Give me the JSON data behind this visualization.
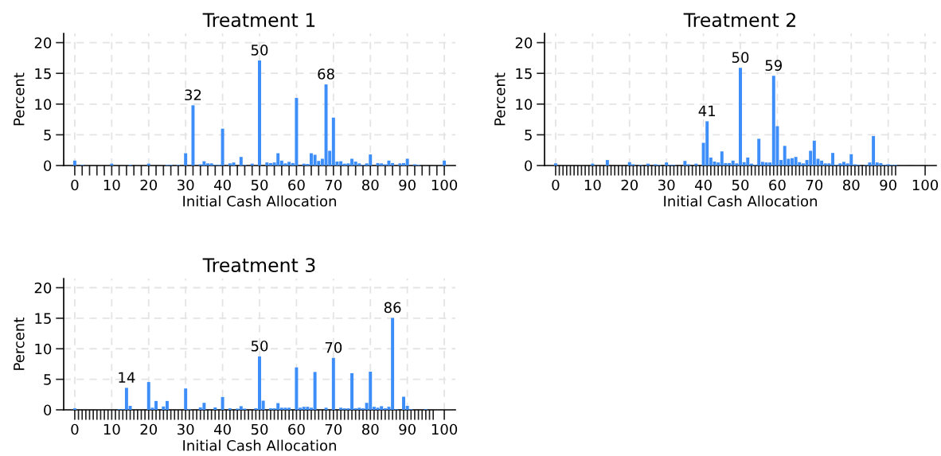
{
  "chart_data": [
    {
      "type": "histogram",
      "title": "Treatment 1",
      "xlabel": "Initial Cash Allocation",
      "ylabel": "Percent",
      "color": "#3d8ef8",
      "grid": true,
      "bins": [
        -0.5,
        0.5,
        1.5,
        2.5,
        3.5,
        4.5,
        5.5,
        6.5,
        7.5,
        8.5,
        9.5,
        10.5,
        11.5,
        12.5,
        13.5,
        14.5,
        15.5,
        16.5,
        17.5,
        18.5,
        19.5,
        20.5,
        21.5,
        22.5,
        23.5,
        24.5,
        25.5,
        26.5,
        27.5,
        28.5,
        29.5,
        30.5,
        31.5,
        32.5,
        33.5,
        34.5,
        35.5,
        36.5,
        37.5,
        38.5,
        39.5,
        40.5,
        41.5,
        42.5,
        43.5,
        44.5,
        45.5,
        46.5,
        47.5,
        48.5,
        49.5,
        50.5,
        51.5,
        52.5,
        53.5,
        54.5,
        55.5,
        56.5,
        57.5,
        58.5,
        59.5,
        60.5,
        61.5,
        62.5,
        63.5,
        64.5,
        65.5,
        66.5,
        67.5,
        68.5,
        69.5,
        70.5,
        71.5,
        72.5,
        73.5,
        74.5,
        75.5,
        76.5,
        77.5,
        78.5,
        79.5,
        80.5,
        81.5,
        82.5,
        83.5,
        84.5,
        85.5,
        86.5,
        87.5,
        88.5,
        89.5,
        90.5,
        91.5,
        92.5,
        93.5,
        94.5,
        95.5,
        96.5,
        97.5,
        98.5,
        99.5,
        100.5
      ],
      "values": [
        0.8,
        0,
        0.1,
        0,
        0,
        0,
        0,
        0,
        0,
        0,
        0.3,
        0,
        0,
        0,
        0,
        0.1,
        0,
        0,
        0,
        0,
        0.3,
        0,
        0,
        0,
        0,
        0.1,
        0.1,
        0,
        0.1,
        0,
        2.0,
        0,
        9.8,
        0,
        0.2,
        0.7,
        0.35,
        0.35,
        0.1,
        0.1,
        6.0,
        0,
        0.35,
        0.5,
        0,
        1.4,
        0.1,
        0,
        0.3,
        0,
        17.1,
        0,
        0.5,
        0.4,
        0.5,
        2.0,
        0.8,
        0.35,
        0.6,
        0.4,
        11.0,
        0,
        0.3,
        0.25,
        2.0,
        1.75,
        0.75,
        1.1,
        13.2,
        2.4,
        7.8,
        0.65,
        0.7,
        0.3,
        0.35,
        1.1,
        0.65,
        0.35,
        0.1,
        0.35,
        1.8,
        0,
        0.4,
        0.35,
        0.2,
        0.8,
        0.4,
        0,
        0.35,
        0.4,
        1.1,
        0,
        0.2,
        0.1,
        0,
        0,
        0,
        0,
        0,
        0,
        0.8
      ],
      "xlim": [
        -3,
        103
      ],
      "ylim": [
        0,
        21.5
      ],
      "yticks": [
        0,
        5,
        10,
        15,
        20
      ],
      "xticks": [
        0,
        {
          "value": 2,
          "label": null
        },
        {
          "value": 4,
          "label": null
        },
        {
          "value": 6,
          "label": null
        },
        {
          "value": 8,
          "label": null
        },
        10,
        {
          "value": 12,
          "label": null
        },
        {
          "value": 14,
          "label": null
        },
        {
          "value": 16,
          "label": null
        },
        {
          "value": 18,
          "label": null
        },
        20,
        {
          "value": 22,
          "label": null
        },
        {
          "value": 24,
          "label": null
        },
        {
          "value": 26,
          "label": null
        },
        {
          "value": 28,
          "label": null
        },
        30,
        {
          "value": 32,
          "label": null
        },
        {
          "value": 34,
          "label": null
        },
        {
          "value": 36,
          "label": null
        },
        {
          "value": 38,
          "label": null
        },
        40,
        {
          "value": 42,
          "label": null
        },
        {
          "value": 44,
          "label": null
        },
        {
          "value": 46,
          "label": null
        },
        {
          "value": 48,
          "label": null
        },
        50,
        {
          "value": 52,
          "label": null
        },
        {
          "value": 54,
          "label": null
        },
        {
          "value": 56,
          "label": null
        },
        {
          "value": 58,
          "label": null
        },
        60,
        {
          "value": 62,
          "label": null
        },
        {
          "value": 64,
          "label": null
        },
        {
          "value": 66,
          "label": null
        },
        {
          "value": 68,
          "label": null
        },
        70,
        {
          "value": 72,
          "label": null
        },
        {
          "value": 74,
          "label": null
        },
        {
          "value": 76,
          "label": null
        },
        {
          "value": 78,
          "label": null
        },
        80,
        {
          "value": 82,
          "label": null
        },
        {
          "value": 84,
          "label": null
        },
        {
          "value": 86,
          "label": null
        },
        {
          "value": 88,
          "label": null
        },
        90,
        {
          "value": 92,
          "label": null
        },
        {
          "value": 94,
          "label": null
        },
        {
          "value": 96,
          "label": null
        },
        {
          "value": 98,
          "label": null
        },
        100
      ],
      "annotations": [
        {
          "text": "32",
          "x": 32,
          "y": 9.8
        },
        {
          "text": "50",
          "x": 50,
          "y": 17.1
        },
        {
          "text": "68",
          "x": 68,
          "y": 13.2
        }
      ]
    },
    {
      "type": "histogram",
      "title": "Treatment 2",
      "xlabel": "Initial Cash Allocation",
      "ylabel": "Percent",
      "color": "#3d8ef8",
      "grid": true,
      "bins": [
        -0.5,
        0.5,
        1.5,
        2.5,
        3.5,
        4.5,
        5.5,
        6.5,
        7.5,
        8.5,
        9.5,
        10.5,
        11.5,
        12.5,
        13.5,
        14.5,
        15.5,
        16.5,
        17.5,
        18.5,
        19.5,
        20.5,
        21.5,
        22.5,
        23.5,
        24.5,
        25.5,
        26.5,
        27.5,
        28.5,
        29.5,
        30.5,
        31.5,
        32.5,
        33.5,
        34.5,
        35.5,
        36.5,
        37.5,
        38.5,
        39.5,
        40.5,
        41.5,
        42.5,
        43.5,
        44.5,
        45.5,
        46.5,
        47.5,
        48.5,
        49.5,
        50.5,
        51.5,
        52.5,
        53.5,
        54.5,
        55.5,
        56.5,
        57.5,
        58.5,
        59.5,
        60.5,
        61.5,
        62.5,
        63.5,
        64.5,
        65.5,
        66.5,
        67.5,
        68.5,
        69.5,
        70.5,
        71.5,
        72.5,
        73.5,
        74.5,
        75.5,
        76.5,
        77.5,
        78.5,
        79.5,
        80.5,
        81.5,
        82.5,
        83.5,
        84.5,
        85.5,
        86.5,
        87.5,
        88.5,
        89.5,
        90.5,
        91.5,
        92.5,
        93.5,
        94.5,
        95.5,
        96.5,
        97.5,
        98.5,
        99.5,
        100.5
      ],
      "values": [
        0.35,
        0,
        0,
        0,
        0,
        0,
        0,
        0,
        0,
        0,
        0.3,
        0,
        0,
        0,
        0.9,
        0,
        0,
        0,
        0,
        0,
        0.55,
        0.2,
        0,
        0.1,
        0,
        0.3,
        0,
        0.2,
        0.1,
        0,
        0.5,
        0.1,
        0.1,
        0,
        0,
        0.75,
        0.2,
        0,
        0.3,
        0,
        3.7,
        7.2,
        1.3,
        0.65,
        0.5,
        2.3,
        0.4,
        0.4,
        0.8,
        0.35,
        15.9,
        0.55,
        1.3,
        0.3,
        0.1,
        4.35,
        0.6,
        0.5,
        0.5,
        14.6,
        6.4,
        0.9,
        3.2,
        1.1,
        1.2,
        1.4,
        0.55,
        0.35,
        0.9,
        2.4,
        4.05,
        1.1,
        0.8,
        0.35,
        0.35,
        2.05,
        0.1,
        0.35,
        0.6,
        0.35,
        1.85,
        0.2,
        0.1,
        0,
        0.1,
        0.5,
        4.8,
        0.5,
        0.4,
        0.1,
        0.2,
        0.1,
        0.1,
        0,
        0,
        0,
        0,
        0,
        0,
        0,
        0
      ],
      "xlim": [
        -3,
        103
      ],
      "ylim": [
        0,
        21.5
      ],
      "yticks": [
        0,
        5,
        10,
        15,
        20
      ],
      "xticks": [
        0,
        {
          "value": 1,
          "label": null
        },
        {
          "value": 2,
          "label": null
        },
        {
          "value": 3,
          "label": null
        },
        {
          "value": 4,
          "label": null
        },
        {
          "value": 5,
          "label": null
        },
        {
          "value": 6,
          "label": null
        },
        {
          "value": 7,
          "label": null
        },
        {
          "value": 8,
          "label": null
        },
        {
          "value": 9,
          "label": null
        },
        10,
        {
          "value": 11,
          "label": null
        },
        {
          "value": 12,
          "label": null
        },
        {
          "value": 13,
          "label": null
        },
        {
          "value": 14,
          "label": null
        },
        {
          "value": 15,
          "label": null
        },
        {
          "value": 16,
          "label": null
        },
        {
          "value": 17,
          "label": null
        },
        {
          "value": 18,
          "label": null
        },
        {
          "value": 19,
          "label": null
        },
        20,
        {
          "value": 21,
          "label": null
        },
        {
          "value": 22,
          "label": null
        },
        {
          "value": 23,
          "label": null
        },
        {
          "value": 24,
          "label": null
        },
        {
          "value": 25,
          "label": null
        },
        {
          "value": 26,
          "label": null
        },
        {
          "value": 27,
          "label": null
        },
        {
          "value": 28,
          "label": null
        },
        {
          "value": 29,
          "label": null
        },
        30,
        {
          "value": 31,
          "label": null
        },
        {
          "value": 32,
          "label": null
        },
        {
          "value": 33,
          "label": null
        },
        {
          "value": 34,
          "label": null
        },
        {
          "value": 35,
          "label": null
        },
        {
          "value": 36,
          "label": null
        },
        {
          "value": 37,
          "label": null
        },
        {
          "value": 38,
          "label": null
        },
        {
          "value": 39,
          "label": null
        },
        40,
        {
          "value": 41,
          "label": null
        },
        {
          "value": 42,
          "label": null
        },
        {
          "value": 43,
          "label": null
        },
        {
          "value": 44,
          "label": null
        },
        {
          "value": 45,
          "label": null
        },
        {
          "value": 46,
          "label": null
        },
        {
          "value": 47,
          "label": null
        },
        {
          "value": 48,
          "label": null
        },
        {
          "value": 49,
          "label": null
        },
        50,
        {
          "value": 51,
          "label": null
        },
        {
          "value": 52,
          "label": null
        },
        {
          "value": 53,
          "label": null
        },
        {
          "value": 54,
          "label": null
        },
        {
          "value": 55,
          "label": null
        },
        {
          "value": 56,
          "label": null
        },
        {
          "value": 57,
          "label": null
        },
        {
          "value": 58,
          "label": null
        },
        {
          "value": 59,
          "label": null
        },
        60,
        {
          "value": 61,
          "label": null
        },
        {
          "value": 62,
          "label": null
        },
        {
          "value": 63,
          "label": null
        },
        {
          "value": 64,
          "label": null
        },
        {
          "value": 65,
          "label": null
        },
        {
          "value": 66,
          "label": null
        },
        {
          "value": 67,
          "label": null
        },
        {
          "value": 68,
          "label": null
        },
        {
          "value": 69,
          "label": null
        },
        70,
        {
          "value": 71,
          "label": null
        },
        {
          "value": 72,
          "label": null
        },
        {
          "value": 73,
          "label": null
        },
        {
          "value": 74,
          "label": null
        },
        {
          "value": 75,
          "label": null
        },
        {
          "value": 76,
          "label": null
        },
        {
          "value": 77,
          "label": null
        },
        {
          "value": 78,
          "label": null
        },
        {
          "value": 79,
          "label": null
        },
        80,
        {
          "value": 81,
          "label": null
        },
        {
          "value": 82,
          "label": null
        },
        {
          "value": 83,
          "label": null
        },
        {
          "value": 84,
          "label": null
        },
        {
          "value": 85,
          "label": null
        },
        {
          "value": 86,
          "label": null
        },
        {
          "value": 87,
          "label": null
        },
        {
          "value": 88,
          "label": null
        },
        {
          "value": 89,
          "label": null
        },
        90,
        {
          "value": 91,
          "label": null
        },
        {
          "value": 92,
          "label": null
        },
        100
      ],
      "annotations": [
        {
          "text": "41",
          "x": 41,
          "y": 7.2
        },
        {
          "text": "50",
          "x": 50,
          "y": 15.9
        },
        {
          "text": "59",
          "x": 59,
          "y": 14.6
        }
      ]
    },
    {
      "type": "histogram",
      "title": "Treatment 3",
      "xlabel": "Initial Cash Allocation",
      "ylabel": "Percent",
      "color": "#3d8ef8",
      "grid": true,
      "bins": [
        -0.5,
        0.5,
        1.5,
        2.5,
        3.5,
        4.5,
        5.5,
        6.5,
        7.5,
        8.5,
        9.5,
        10.5,
        11.5,
        12.5,
        13.5,
        14.5,
        15.5,
        16.5,
        17.5,
        18.5,
        19.5,
        20.5,
        21.5,
        22.5,
        23.5,
        24.5,
        25.5,
        26.5,
        27.5,
        28.5,
        29.5,
        30.5,
        31.5,
        32.5,
        33.5,
        34.5,
        35.5,
        36.5,
        37.5,
        38.5,
        39.5,
        40.5,
        41.5,
        42.5,
        43.5,
        44.5,
        45.5,
        46.5,
        47.5,
        48.5,
        49.5,
        50.5,
        51.5,
        52.5,
        53.5,
        54.5,
        55.5,
        56.5,
        57.5,
        58.5,
        59.5,
        60.5,
        61.5,
        62.5,
        63.5,
        64.5,
        65.5,
        66.5,
        67.5,
        68.5,
        69.5,
        70.5,
        71.5,
        72.5,
        73.5,
        74.5,
        75.5,
        76.5,
        77.5,
        78.5,
        79.5,
        80.5,
        81.5,
        82.5,
        83.5,
        84.5,
        85.5,
        86.5,
        87.5,
        88.5,
        89.5,
        90.5,
        91.5,
        92.5,
        93.5,
        94.5,
        95.5,
        96.5,
        97.5,
        98.5,
        99.5,
        100.5
      ],
      "values": [
        0.25,
        0,
        0,
        0,
        0,
        0,
        0,
        0,
        0,
        0,
        0,
        0,
        0.1,
        0.1,
        3.6,
        0.65,
        0,
        0,
        0,
        0,
        4.55,
        0.35,
        1.45,
        0,
        0.55,
        1.45,
        0,
        0,
        0,
        0,
        3.5,
        0.1,
        0,
        0,
        0.4,
        1.15,
        0,
        0,
        0.4,
        0,
        2.1,
        0,
        0.25,
        0,
        0.2,
        0.6,
        0.2,
        0,
        0,
        0.25,
        8.75,
        1.5,
        0,
        0.25,
        0.25,
        1.1,
        0.35,
        0.35,
        0.35,
        0,
        6.95,
        0.35,
        0.5,
        0.5,
        0.35,
        6.2,
        0,
        0,
        0.35,
        0,
        8.5,
        0,
        0.35,
        0.25,
        0.25,
        6.0,
        0.25,
        0.35,
        0.25,
        1.15,
        6.25,
        0.5,
        0.35,
        0.6,
        0.25,
        0.5,
        15.05,
        0.1,
        0,
        2.15,
        0.65,
        0.1,
        0,
        0,
        0,
        0.1,
        0,
        0,
        0,
        0,
        0
      ],
      "xlim": [
        -3,
        103
      ],
      "ylim": [
        0,
        21.5
      ],
      "yticks": [
        0,
        5,
        10,
        15,
        20
      ],
      "xticks": [
        0,
        {
          "value": 1,
          "label": null
        },
        {
          "value": 2,
          "label": null
        },
        {
          "value": 3,
          "label": null
        },
        {
          "value": 4,
          "label": null
        },
        {
          "value": 5,
          "label": null
        },
        {
          "value": 6,
          "label": null
        },
        {
          "value": 7,
          "label": null
        },
        {
          "value": 8,
          "label": null
        },
        {
          "value": 9,
          "label": null
        },
        10,
        {
          "value": 11,
          "label": null
        },
        {
          "value": 12,
          "label": null
        },
        {
          "value": 13,
          "label": null
        },
        {
          "value": 14,
          "label": null
        },
        {
          "value": 15,
          "label": null
        },
        {
          "value": 16,
          "label": null
        },
        {
          "value": 17,
          "label": null
        },
        {
          "value": 18,
          "label": null
        },
        {
          "value": 19,
          "label": null
        },
        20,
        {
          "value": 21,
          "label": null
        },
        {
          "value": 22,
          "label": null
        },
        {
          "value": 23,
          "label": null
        },
        {
          "value": 24,
          "label": null
        },
        {
          "value": 25,
          "label": null
        },
        {
          "value": 26,
          "label": null
        },
        {
          "value": 27,
          "label": null
        },
        {
          "value": 28,
          "label": null
        },
        {
          "value": 29,
          "label": null
        },
        30,
        {
          "value": 31,
          "label": null
        },
        {
          "value": 32,
          "label": null
        },
        {
          "value": 33,
          "label": null
        },
        {
          "value": 34,
          "label": null
        },
        {
          "value": 35,
          "label": null
        },
        {
          "value": 36,
          "label": null
        },
        {
          "value": 37,
          "label": null
        },
        {
          "value": 38,
          "label": null
        },
        {
          "value": 39,
          "label": null
        },
        40,
        {
          "value": 41,
          "label": null
        },
        {
          "value": 42,
          "label": null
        },
        {
          "value": 43,
          "label": null
        },
        {
          "value": 44,
          "label": null
        },
        {
          "value": 45,
          "label": null
        },
        {
          "value": 46,
          "label": null
        },
        {
          "value": 47,
          "label": null
        },
        {
          "value": 48,
          "label": null
        },
        {
          "value": 49,
          "label": null
        },
        50,
        {
          "value": 51,
          "label": null
        },
        {
          "value": 52,
          "label": null
        },
        {
          "value": 53,
          "label": null
        },
        {
          "value": 54,
          "label": null
        },
        {
          "value": 55,
          "label": null
        },
        {
          "value": 56,
          "label": null
        },
        {
          "value": 57,
          "label": null
        },
        {
          "value": 58,
          "label": null
        },
        {
          "value": 59,
          "label": null
        },
        60,
        {
          "value": 61,
          "label": null
        },
        {
          "value": 62,
          "label": null
        },
        {
          "value": 63,
          "label": null
        },
        {
          "value": 64,
          "label": null
        },
        {
          "value": 65,
          "label": null
        },
        {
          "value": 66,
          "label": null
        },
        {
          "value": 67,
          "label": null
        },
        {
          "value": 68,
          "label": null
        },
        {
          "value": 69,
          "label": null
        },
        70,
        {
          "value": 71,
          "label": null
        },
        {
          "value": 72,
          "label": null
        },
        {
          "value": 73,
          "label": null
        },
        {
          "value": 74,
          "label": null
        },
        {
          "value": 75,
          "label": null
        },
        {
          "value": 76,
          "label": null
        },
        {
          "value": 77,
          "label": null
        },
        {
          "value": 78,
          "label": null
        },
        {
          "value": 79,
          "label": null
        },
        80,
        {
          "value": 81,
          "label": null
        },
        {
          "value": 82,
          "label": null
        },
        {
          "value": 83,
          "label": null
        },
        {
          "value": 84,
          "label": null
        },
        {
          "value": 85,
          "label": null
        },
        {
          "value": 86,
          "label": null
        },
        {
          "value": 87,
          "label": null
        },
        {
          "value": 88,
          "label": null
        },
        {
          "value": 89,
          "label": null
        },
        90,
        {
          "value": 91,
          "label": null
        },
        {
          "value": 92,
          "label": null
        },
        {
          "value": 93,
          "label": null
        },
        {
          "value": 94,
          "label": null
        },
        {
          "value": 95,
          "label": null
        },
        {
          "value": 96,
          "label": null
        },
        {
          "value": 97,
          "label": null
        },
        100
      ],
      "annotations": [
        {
          "text": "14",
          "x": 14,
          "y": 3.6
        },
        {
          "text": "50",
          "x": 50,
          "y": 8.75
        },
        {
          "text": "70",
          "x": 70,
          "y": 8.5
        },
        {
          "text": "86",
          "x": 86,
          "y": 15.05
        }
      ]
    }
  ]
}
